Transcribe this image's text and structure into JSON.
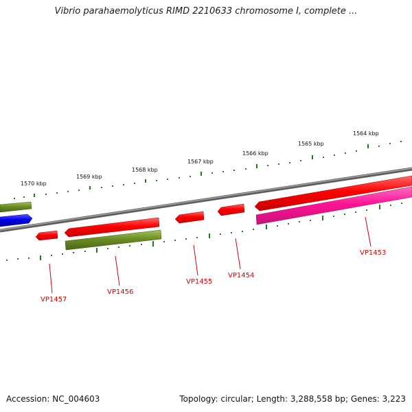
{
  "header": {
    "title": "Vibrio parahaemolyticus RIMD 2210633 chromosome I, complete ..."
  },
  "footer": {
    "accession": "Accession: NC_004603",
    "summary": "Topology: circular; Length: 3,288,558 bp; Genes: 3,223"
  },
  "colors": {
    "backbone": "#7a7a7a",
    "tick": "#1f7a1f",
    "label": "#cc0000",
    "gene_red": "#ff0000",
    "gene_olive": "#6b8e23",
    "gene_blue": "#0000ee",
    "gene_magenta": "#ff1493"
  },
  "scale": {
    "unit": "kbp",
    "marks": [
      {
        "kbp": 1570,
        "label": "1570 kbp"
      },
      {
        "kbp": 1569,
        "label": "1569 kbp"
      },
      {
        "kbp": 1568,
        "label": "1568 kbp"
      },
      {
        "kbp": 1567,
        "label": "1567 kbp"
      },
      {
        "kbp": 1566,
        "label": "1566 kbp"
      },
      {
        "kbp": 1565,
        "label": "1565 kbp"
      },
      {
        "kbp": 1564,
        "label": "1564 kbp"
      }
    ]
  },
  "genes": [
    {
      "name": "green-1",
      "label": "",
      "strand": "+",
      "color": "olive"
    },
    {
      "name": "blue-1",
      "label": "",
      "strand": "+",
      "color": "blue"
    },
    {
      "name": "VP1457",
      "label": "VP1457",
      "strand": "-",
      "color": "red"
    },
    {
      "name": "VP1456-red",
      "label": "",
      "strand": "-",
      "color": "red"
    },
    {
      "name": "VP1456",
      "label": "VP1456",
      "strand": "-",
      "color": "olive"
    },
    {
      "name": "VP1455",
      "label": "VP1455",
      "strand": "-",
      "color": "red"
    },
    {
      "name": "VP1454",
      "label": "VP1454",
      "strand": "-",
      "color": "red"
    },
    {
      "name": "VP1453-red",
      "label": "",
      "strand": "-",
      "color": "red"
    },
    {
      "name": "VP1453",
      "label": "VP1453",
      "strand": "-",
      "color": "magenta"
    }
  ]
}
